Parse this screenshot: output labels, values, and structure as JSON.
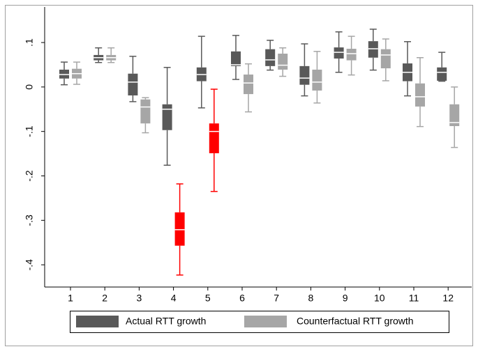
{
  "chart_data": {
    "type": "box",
    "categories": [
      "1",
      "2",
      "3",
      "4",
      "5",
      "6",
      "7",
      "8",
      "9",
      "10",
      "11",
      "12"
    ],
    "ylim": [
      -0.45,
      0.18
    ],
    "yticks": [
      {
        "value": 0.1,
        "label": ".1"
      },
      0,
      {
        "value": -0.1,
        "label": "-.1"
      },
      {
        "value": -0.2,
        "label": "-.2"
      },
      {
        "value": -0.3,
        "label": "-.3"
      },
      {
        "value": -0.4,
        "label": "-.4"
      }
    ],
    "series": [
      {
        "name": "Actual RTT growth",
        "color": "#595959",
        "colors": [
          "#595959",
          "#595959",
          "#595959",
          "#595959",
          "#595959",
          "#595959",
          "#595959",
          "#595959",
          "#595959",
          "#595959",
          "#595959",
          "#595959"
        ],
        "min": [
          0.005,
          0.055,
          -0.033,
          -0.176,
          -0.047,
          0.017,
          0.038,
          -0.02,
          0.033,
          0.038,
          -0.02,
          0.013
        ],
        "q1": [
          0.019,
          0.06,
          -0.019,
          -0.097,
          0.013,
          0.047,
          0.047,
          0.005,
          0.064,
          0.066,
          0.013,
          0.014
        ],
        "median": [
          0.028,
          0.066,
          0.011,
          -0.05,
          0.028,
          0.05,
          0.061,
          0.02,
          0.078,
          0.086,
          0.033,
          0.033
        ],
        "q3": [
          0.039,
          0.072,
          0.03,
          -0.039,
          0.044,
          0.08,
          0.085,
          0.047,
          0.089,
          0.103,
          0.053,
          0.044
        ],
        "max": [
          0.056,
          0.088,
          0.069,
          0.044,
          0.114,
          0.116,
          0.105,
          0.097,
          0.124,
          0.13,
          0.102,
          0.078
        ]
      },
      {
        "name": "Counterfactual RTT growth",
        "color": "#a6a6a6",
        "colors": [
          "#a6a6a6",
          "#a6a6a6",
          "#a6a6a6",
          "#ff0000",
          "#ff0000",
          "#a6a6a6",
          "#a6a6a6",
          "#a6a6a6",
          "#a6a6a6",
          "#a6a6a6",
          "#a6a6a6",
          "#a6a6a6"
        ],
        "min": [
          0.006,
          0.055,
          -0.103,
          -0.423,
          -0.235,
          -0.056,
          0.024,
          -0.036,
          0.027,
          0.014,
          -0.089,
          -0.136
        ],
        "q1": [
          0.019,
          0.06,
          -0.082,
          -0.357,
          -0.149,
          -0.016,
          0.039,
          -0.008,
          0.06,
          0.042,
          -0.044,
          -0.088
        ],
        "median": [
          0.03,
          0.066,
          -0.045,
          -0.321,
          -0.1,
          0.009,
          0.049,
          0.011,
          0.075,
          0.072,
          -0.022,
          -0.08
        ],
        "q3": [
          0.041,
          0.072,
          -0.028,
          -0.282,
          -0.082,
          0.028,
          0.075,
          0.039,
          0.086,
          0.085,
          0.008,
          -0.039
        ],
        "max": [
          0.056,
          0.088,
          -0.024,
          -0.218,
          -0.005,
          0.052,
          0.088,
          0.08,
          0.114,
          0.108,
          0.066,
          0.0
        ]
      }
    ]
  }
}
